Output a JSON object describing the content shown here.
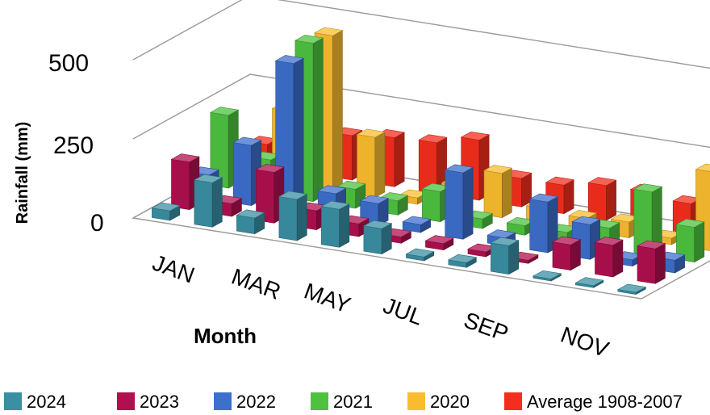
{
  "chart_data": {
    "type": "bar",
    "subtype": "3d-clustered-column",
    "title": "",
    "xlabel": "Month",
    "ylabel": "Rainfall (mm)",
    "ylim": [
      0,
      500
    ],
    "yticks": [
      "0",
      "250",
      "500"
    ],
    "xtick_labels": [
      "JAN",
      "MAR",
      "MAY",
      "JUL",
      "SEP",
      "NOV"
    ],
    "categories": [
      "JAN",
      "FEB",
      "MAR",
      "APR",
      "MAY",
      "JUN",
      "JUL",
      "AUG",
      "SEP",
      "OCT",
      "NOV",
      "DEC"
    ],
    "grid": true,
    "legend_position": "bottom",
    "series": [
      {
        "name": "2024",
        "color": "#3A8FA3",
        "values": [
          30,
          140,
          50,
          130,
          120,
          80,
          12,
          15,
          90,
          0,
          0,
          0
        ]
      },
      {
        "name": "2023",
        "color": "#B0104F",
        "values": [
          150,
          40,
          160,
          60,
          40,
          20,
          20,
          15,
          10,
          80,
          100,
          110
        ]
      },
      {
        "name": "2022",
        "color": "#3D6FCC",
        "values": [
          75,
          190,
          470,
          80,
          70,
          25,
          210,
          25,
          160,
          110,
          20,
          40
        ]
      },
      {
        "name": "2021",
        "color": "#4EC23F",
        "values": [
          230,
          110,
          500,
          60,
          45,
          95,
          30,
          30,
          30,
          65,
          200,
          110
        ]
      },
      {
        "name": "2020",
        "color": "#F9BC2F",
        "values": [
          60,
          230,
          490,
          190,
          20,
          80,
          140,
          50,
          40,
          50,
          20,
          250
        ]
      },
      {
        "name": "Average 1908-2007",
        "color": "#F42E1C",
        "values": [
          70,
          105,
          140,
          155,
          160,
          190,
          90,
          90,
          110,
          110,
          95,
          90
        ]
      }
    ]
  }
}
